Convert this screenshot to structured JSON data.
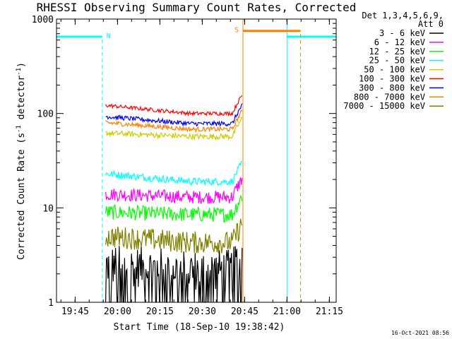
{
  "chart_data": {
    "type": "line",
    "title": "RHESSI Observing Summary Count Rates, Corrected",
    "xlabel": "Start Time (18-Sep-10 19:38:42)",
    "ylabel_main": "Corrected Count Rate (s",
    "ylabel_sup1": "-1",
    "ylabel_mid": " detector",
    "ylabel_sup2": "-1",
    "ylabel_end": ")",
    "yscale": "log",
    "ylim": [
      1,
      1000
    ],
    "xlim": [
      19.64,
      21.29
    ],
    "yticks": [
      {
        "v": 1,
        "label": "1"
      },
      {
        "v": 10,
        "label": "10"
      },
      {
        "v": 100,
        "label": "100"
      },
      {
        "v": 1000,
        "label": "1000"
      }
    ],
    "xticks": [
      {
        "h": 19.75,
        "label": "19:45"
      },
      {
        "h": 20.0,
        "label": "20:00"
      },
      {
        "h": 20.25,
        "label": "20:15"
      },
      {
        "h": 20.5,
        "label": "20:30"
      },
      {
        "h": 20.75,
        "label": "20:45"
      },
      {
        "h": 21.0,
        "label": "21:00"
      },
      {
        "h": 21.25,
        "label": "21:15"
      }
    ],
    "legend_header": [
      "Det 1,3,4,5,6,9,",
      "Att 0"
    ],
    "legend_position": "right",
    "series": [
      {
        "name": "3 - 6 keV",
        "color": "#000000",
        "start_value": 2.5,
        "end_value": 2.2,
        "noise": 0.22,
        "low_floor": true
      },
      {
        "name": "6 - 12 keV",
        "color": "#ff00ff",
        "start_value": 14,
        "end_value": 13,
        "noise": 0.07
      },
      {
        "name": "12 - 25 keV",
        "color": "#00ff00",
        "start_value": 9,
        "end_value": 8.5,
        "noise": 0.08
      },
      {
        "name": "25 - 50 keV",
        "color": "#00ffff",
        "start_value": 23,
        "end_value": 19,
        "noise": 0.04
      },
      {
        "name": "50 - 100 keV",
        "color": "#cccc00",
        "start_value": 62,
        "end_value": 57,
        "noise": 0.03
      },
      {
        "name": "100 - 300 keV",
        "color": "#ff0000",
        "start_value": 122,
        "end_value": 100,
        "noise": 0.02
      },
      {
        "name": "300 - 800 keV",
        "color": "#0000ff",
        "start_value": 93,
        "end_value": 78,
        "noise": 0.025
      },
      {
        "name": "800 - 7000 keV",
        "color": "#ff8000",
        "start_value": 80,
        "end_value": 68,
        "noise": 0.025
      },
      {
        "name": "7000 - 15000 keV",
        "color": "#808000",
        "start_value": 5,
        "end_value": 4.3,
        "noise": 0.12
      }
    ],
    "data_interval": {
      "start_h": 19.93,
      "end_h": 20.735
    },
    "flags": [
      {
        "label": "N",
        "color": "#00ffff",
        "segments": [
          [
            19.64,
            19.91
          ],
          [
            21.0,
            21.29
          ]
        ],
        "value": 650,
        "vlines_solid": [
          19.64,
          21.0
        ],
        "vlines_dashed": [
          19.91,
          21.29
        ]
      },
      {
        "label": "S",
        "color": "#ff8000",
        "segments": [
          [
            20.74,
            21.08
          ]
        ],
        "value": 750,
        "vlines_solid": [
          20.74
        ],
        "vlines_dashed": [
          21.08
        ]
      }
    ],
    "date_stamp": "16-Oct-2021 08:56"
  }
}
